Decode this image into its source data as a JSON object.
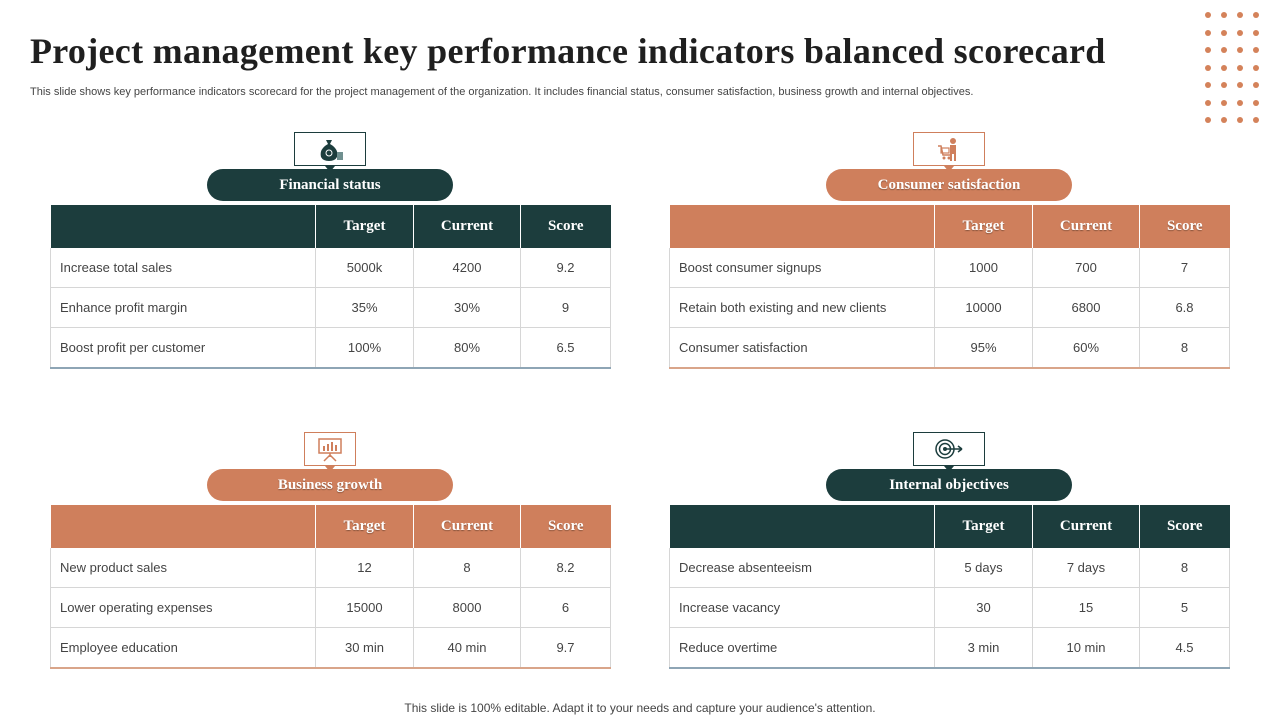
{
  "title": "Project management key performance indicators balanced scorecard",
  "subtitle": "This slide shows key performance indicators scorecard for the project management of the organization. It includes financial status, consumer satisfaction, business growth and internal objectives.",
  "footer": "This slide is 100% editable. Adapt it to your needs and capture your audience's attention.",
  "colors": {
    "dark": "#1c3d3d",
    "orange": "#cf7f5c"
  },
  "columns": [
    "Target",
    "Current",
    "Score"
  ],
  "panels": [
    {
      "name": "Financial status",
      "icon": "money-bag-icon",
      "rows": [
        {
          "label": "Increase total sales",
          "target": "5000k",
          "current": "4200",
          "score": "9.2"
        },
        {
          "label": "Enhance profit  margin",
          "target": "35%",
          "current": "30%",
          "score": "9"
        },
        {
          "label": "Boost profit  per customer",
          "target": "100%",
          "current": "80%",
          "score": "6.5"
        }
      ]
    },
    {
      "name": "Consumer satisfaction",
      "icon": "shopping-cart-person-icon",
      "rows": [
        {
          "label": "Boost consumer signups",
          "target": "1000",
          "current": "700",
          "score": "7"
        },
        {
          "label": "Retain both existing and new clients",
          "target": "10000",
          "current": "6800",
          "score": "6.8"
        },
        {
          "label": "Consumer satisfaction",
          "target": "95%",
          "current": "60%",
          "score": "8"
        }
      ]
    },
    {
      "name": "Business growth",
      "icon": "presentation-board-icon",
      "rows": [
        {
          "label": "New product sales",
          "target": "12",
          "current": "8",
          "score": "8.2"
        },
        {
          "label": "Lower operating expenses",
          "target": "15000",
          "current": "8000",
          "score": "6"
        },
        {
          "label": "Employee education",
          "target": "30 min",
          "current": "40 min",
          "score": "9.7"
        }
      ]
    },
    {
      "name": "Internal objectives",
      "icon": "target-arrow-icon",
      "rows": [
        {
          "label": "Decrease absenteeism",
          "target": "5 days",
          "current": "7 days",
          "score": "8"
        },
        {
          "label": "Increase vacancy",
          "target": "30",
          "current": "15",
          "score": "5"
        },
        {
          "label": "Reduce overtime",
          "target": "3 min",
          "current": "10 min",
          "score": "4.5"
        }
      ]
    }
  ]
}
